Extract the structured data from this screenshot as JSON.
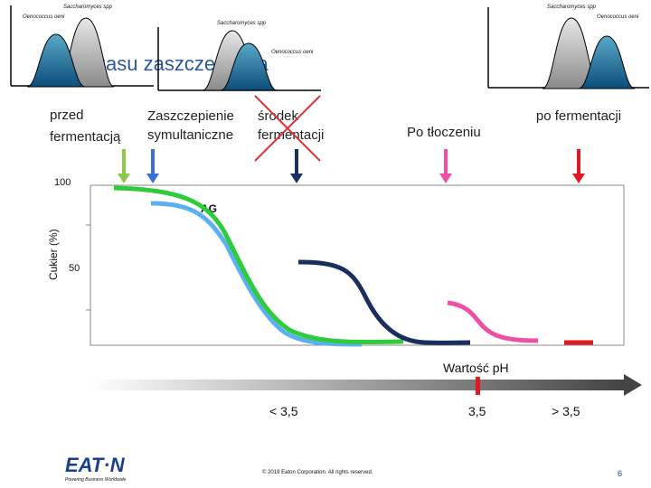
{
  "mini_charts": [
    {
      "labels": [
        "Saccharomyces spp",
        "Oenococcus oeni"
      ]
    },
    {
      "labels": [
        "Saccharomyces spp",
        "Oenococcus oeni"
      ]
    },
    {
      "labels": [
        "Saccharomyces spp",
        "Oenococcus oeni"
      ]
    }
  ],
  "title": "czasu zaszczepienia",
  "stages": [
    "przed fermentacją",
    "Zaszczepienie symultaniczne",
    "środek fermentacji",
    "Po tłoczeniu",
    "po fermentacji"
  ],
  "chart": {
    "y_label": "Cukier (%)",
    "y_ticks": [
      "100",
      "50"
    ],
    "annotation": "AG"
  },
  "ph": {
    "label": "Wartość pH",
    "ticks": [
      "< 3,5",
      "3,5",
      "> 3,5"
    ]
  },
  "footer": {
    "logo": "EAT·N",
    "tagline": "Powering Business Worldwide",
    "copyright": "© 2019 Eaton Corporation. All rights reserved.",
    "page": "6"
  }
}
